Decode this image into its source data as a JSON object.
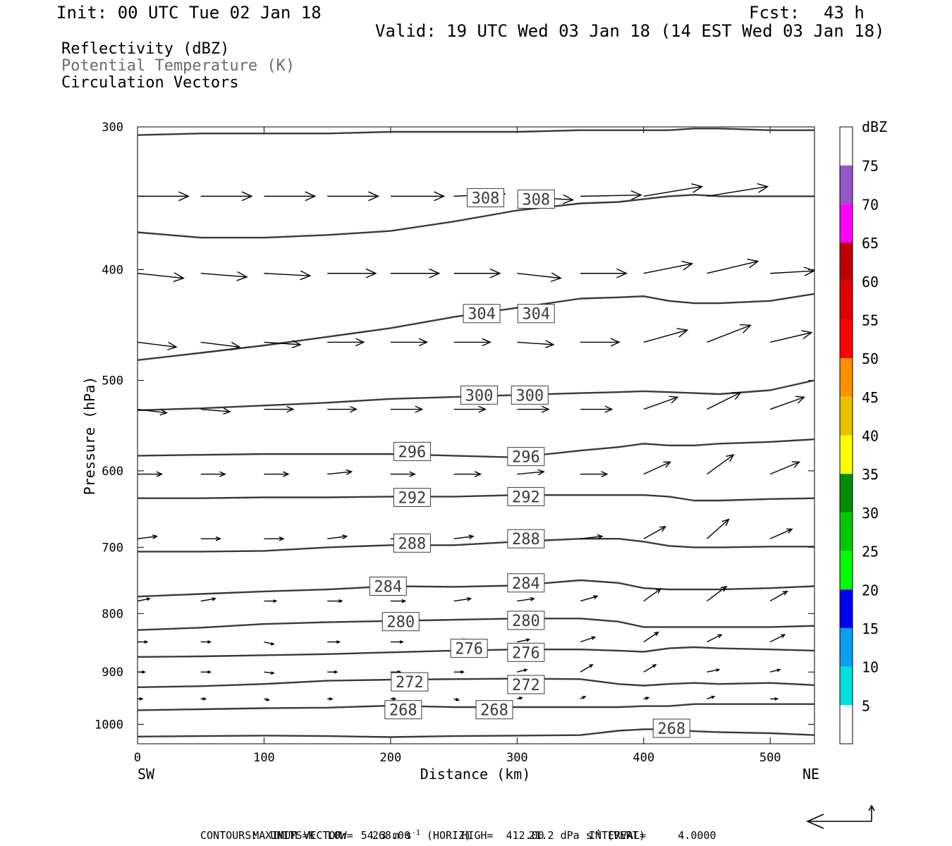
{
  "header": {
    "init": "Init: 00 UTC Tue 02 Jan 18",
    "fcst_label": "Fcst:",
    "fcst_value": "43 h",
    "valid": "Valid: 19 UTC Wed 03 Jan 18 (14 EST Wed 03 Jan 18)"
  },
  "fields": {
    "reflectivity": "Reflectivity (dBZ)",
    "potential_temperature": "Potential Temperature (K)",
    "circulation": "Circulation Vectors"
  },
  "axes": {
    "ylabel": "Pressure (hPa)",
    "xlabel": "Distance (km)",
    "left_end": "SW",
    "right_end": "NE"
  },
  "colorbar": {
    "unit": "dBZ",
    "levels": [
      "5",
      "10",
      "15",
      "20",
      "25",
      "30",
      "35",
      "40",
      "45",
      "50",
      "55",
      "60",
      "65",
      "70",
      "75"
    ],
    "colors": [
      "#ffffff",
      "#00e0e0",
      "#0aa0f0",
      "#0000f0",
      "#00ff00",
      "#00c800",
      "#008c00",
      "#ffff00",
      "#e8c000",
      "#ff9000",
      "#ff0000",
      "#e00000",
      "#c00000",
      "#ff00ff",
      "#9655c8",
      "#ffffff"
    ]
  },
  "footer": {
    "max_vector_label": "MAXIMUM VECTOR:",
    "horiz": "54.3 m s",
    "horiz_suffix": "(HORIZ)",
    "vert": "21.2 dPa s",
    "vert_suffix": "(VERT)",
    "exponent": "-1",
    "contours": "CONTOURS:  UNITS=K  LOW=   268.00        HIGH=  412.00       INTERVAL=     4.0000"
  },
  "chart_data": {
    "type": "line",
    "xlim": [
      0,
      535
    ],
    "ylim": [
      1040,
      300
    ],
    "y_scale": "log",
    "x_ticks": [
      "0",
      "100",
      "200",
      "300",
      "400",
      "500"
    ],
    "y_ticks": [
      "300",
      "400",
      "500",
      "600",
      "700",
      "800",
      "900",
      "1000"
    ],
    "contour_unit": "K",
    "x": [
      0,
      50,
      100,
      150,
      200,
      250,
      300,
      350,
      380,
      400,
      420,
      440,
      460,
      500,
      535
    ],
    "series": [
      {
        "values": [
          305,
          304,
          304,
          304,
          303,
          303,
          303,
          302,
          302,
          302,
          302,
          301,
          301,
          302,
          302
        ]
      },
      {
        "values": [
          371,
          375,
          375,
          373,
          370,
          363,
          355,
          350,
          349,
          347,
          345,
          344,
          345,
          345,
          345
        ]
      },
      {
        "values": [
          480,
          473,
          466,
          458,
          450,
          440,
          432,
          424,
          423,
          422,
          426,
          428,
          428,
          426,
          420
        ]
      },
      {
        "values": [
          531,
          529,
          526,
          523,
          519,
          517,
          515,
          513,
          512,
          511,
          512,
          513,
          514,
          510,
          500
        ]
      },
      {
        "values": [
          582,
          581,
          580,
          580,
          580,
          582,
          584,
          576,
          572,
          568,
          570,
          570,
          568,
          566,
          563
        ]
      },
      {
        "values": [
          634,
          634,
          633,
          633,
          632,
          632,
          630,
          630,
          630,
          630,
          632,
          637,
          637,
          635,
          634
        ]
      },
      {
        "values": [
          706,
          706,
          705,
          700,
          697,
          697,
          692,
          688,
          688,
          692,
          698,
          700,
          700,
          699,
          699
        ]
      },
      {
        "values": [
          773,
          769,
          765,
          762,
          757,
          758,
          756,
          748,
          752,
          760,
          762,
          762,
          762,
          760,
          757
        ]
      },
      {
        "values": [
          827,
          823,
          817,
          814,
          812,
          810,
          808,
          808,
          813,
          822,
          822,
          822,
          822,
          822,
          820
        ]
      },
      {
        "values": [
          873,
          872,
          870,
          868,
          865,
          862,
          860,
          860,
          862,
          864,
          858,
          856,
          858,
          860,
          862
        ]
      },
      {
        "values": [
          928,
          926,
          922,
          916,
          914,
          913,
          912,
          913,
          922,
          925,
          922,
          920,
          922,
          920,
          924
        ]
      },
      {
        "values": [
          972,
          970,
          968,
          967,
          963,
          966,
          966,
          966,
          966,
          964,
          964,
          960,
          960,
          960,
          960
        ]
      },
      {
        "values": [
          1025,
          1024,
          1023,
          1024,
          1026,
          1024,
          1023,
          1022,
          1013,
          1010,
          1010,
          1014,
          1016,
          1018,
          1022
        ]
      }
    ],
    "contour_labels": [
      {
        "text": "308",
        "x": 275,
        "y": 346
      },
      {
        "text": "308",
        "x": 315,
        "y": 347
      },
      {
        "text": "304",
        "x": 272,
        "y": 437
      },
      {
        "text": "304",
        "x": 315,
        "y": 437
      },
      {
        "text": "300",
        "x": 270,
        "y": 515
      },
      {
        "text": "300",
        "x": 310,
        "y": 515
      },
      {
        "text": "296",
        "x": 217,
        "y": 577
      },
      {
        "text": "296",
        "x": 307,
        "y": 583
      },
      {
        "text": "292",
        "x": 217,
        "y": 633
      },
      {
        "text": "292",
        "x": 307,
        "y": 632
      },
      {
        "text": "288",
        "x": 217,
        "y": 694
      },
      {
        "text": "288",
        "x": 307,
        "y": 688
      },
      {
        "text": "284",
        "x": 198,
        "y": 757
      },
      {
        "text": "284",
        "x": 307,
        "y": 752
      },
      {
        "text": "280",
        "x": 208,
        "y": 813
      },
      {
        "text": "280",
        "x": 307,
        "y": 811
      },
      {
        "text": "276",
        "x": 262,
        "y": 858
      },
      {
        "text": "276",
        "x": 307,
        "y": 865
      },
      {
        "text": "272",
        "x": 215,
        "y": 918
      },
      {
        "text": "272",
        "x": 307,
        "y": 923
      },
      {
        "text": "268",
        "x": 210,
        "y": 971
      },
      {
        "text": "268",
        "x": 282,
        "y": 971
      },
      {
        "text": "268",
        "x": 422,
        "y": 1008
      }
    ],
    "vectors": [
      {
        "x": 0,
        "y": 345,
        "u": 42,
        "w": 0
      },
      {
        "x": 50,
        "y": 345,
        "u": 42,
        "w": 0
      },
      {
        "x": 100,
        "y": 345,
        "u": 42,
        "w": 0
      },
      {
        "x": 150,
        "y": 345,
        "u": 42,
        "w": 0
      },
      {
        "x": 200,
        "y": 345,
        "u": 44,
        "w": 0
      },
      {
        "x": 250,
        "y": 345,
        "u": 42,
        "w": 2
      },
      {
        "x": 300,
        "y": 345,
        "u": 46,
        "w": -3
      },
      {
        "x": 350,
        "y": 345,
        "u": 50,
        "w": 1
      },
      {
        "x": 400,
        "y": 345,
        "u": 48,
        "w": 8
      },
      {
        "x": 450,
        "y": 345,
        "u": 50,
        "w": 8
      },
      {
        "x": 0,
        "y": 403,
        "u": 38,
        "w": -4
      },
      {
        "x": 50,
        "y": 403,
        "u": 38,
        "w": -3
      },
      {
        "x": 100,
        "y": 403,
        "u": 38,
        "w": -2
      },
      {
        "x": 150,
        "y": 403,
        "u": 40,
        "w": 0
      },
      {
        "x": 200,
        "y": 403,
        "u": 40,
        "w": 0
      },
      {
        "x": 250,
        "y": 403,
        "u": 38,
        "w": 0
      },
      {
        "x": 300,
        "y": 403,
        "u": 36,
        "w": -4
      },
      {
        "x": 350,
        "y": 403,
        "u": 38,
        "w": 0
      },
      {
        "x": 400,
        "y": 403,
        "u": 40,
        "w": 8
      },
      {
        "x": 450,
        "y": 403,
        "u": 42,
        "w": 10
      },
      {
        "x": 500,
        "y": 403,
        "u": 36,
        "w": 2
      },
      {
        "x": 0,
        "y": 463,
        "u": 32,
        "w": -4
      },
      {
        "x": 50,
        "y": 463,
        "u": 32,
        "w": -4
      },
      {
        "x": 100,
        "y": 463,
        "u": 30,
        "w": -2
      },
      {
        "x": 150,
        "y": 463,
        "u": 30,
        "w": 0
      },
      {
        "x": 200,
        "y": 463,
        "u": 30,
        "w": 0
      },
      {
        "x": 250,
        "y": 463,
        "u": 30,
        "w": 0
      },
      {
        "x": 300,
        "y": 463,
        "u": 30,
        "w": -2
      },
      {
        "x": 350,
        "y": 463,
        "u": 32,
        "w": 0
      },
      {
        "x": 400,
        "y": 463,
        "u": 36,
        "w": 10
      },
      {
        "x": 450,
        "y": 463,
        "u": 36,
        "w": 14
      },
      {
        "x": 500,
        "y": 463,
        "u": 34,
        "w": 8
      },
      {
        "x": 0,
        "y": 530,
        "u": 24,
        "w": -3
      },
      {
        "x": 50,
        "y": 530,
        "u": 24,
        "w": -2
      },
      {
        "x": 100,
        "y": 530,
        "u": 24,
        "w": 0
      },
      {
        "x": 150,
        "y": 530,
        "u": 24,
        "w": 0
      },
      {
        "x": 200,
        "y": 530,
        "u": 26,
        "w": 0
      },
      {
        "x": 250,
        "y": 530,
        "u": 26,
        "w": 0
      },
      {
        "x": 300,
        "y": 530,
        "u": 26,
        "w": 0
      },
      {
        "x": 350,
        "y": 530,
        "u": 26,
        "w": 0
      },
      {
        "x": 400,
        "y": 530,
        "u": 28,
        "w": 10
      },
      {
        "x": 450,
        "y": 530,
        "u": 28,
        "w": 14
      },
      {
        "x": 500,
        "y": 530,
        "u": 28,
        "w": 10
      },
      {
        "x": 0,
        "y": 604,
        "u": 20,
        "w": 0
      },
      {
        "x": 50,
        "y": 604,
        "u": 20,
        "w": 0
      },
      {
        "x": 100,
        "y": 604,
        "u": 20,
        "w": 0
      },
      {
        "x": 150,
        "y": 604,
        "u": 20,
        "w": 2
      },
      {
        "x": 200,
        "y": 604,
        "u": 20,
        "w": 0
      },
      {
        "x": 250,
        "y": 604,
        "u": 22,
        "w": 0
      },
      {
        "x": 300,
        "y": 604,
        "u": 22,
        "w": 2
      },
      {
        "x": 350,
        "y": 604,
        "u": 22,
        "w": 0
      },
      {
        "x": 400,
        "y": 604,
        "u": 22,
        "w": 10
      },
      {
        "x": 450,
        "y": 604,
        "u": 22,
        "w": 16
      },
      {
        "x": 500,
        "y": 604,
        "u": 24,
        "w": 10
      },
      {
        "x": 0,
        "y": 688,
        "u": 16,
        "w": 2
      },
      {
        "x": 50,
        "y": 688,
        "u": 16,
        "w": 0
      },
      {
        "x": 100,
        "y": 688,
        "u": 16,
        "w": 0
      },
      {
        "x": 150,
        "y": 688,
        "u": 16,
        "w": 2
      },
      {
        "x": 200,
        "y": 688,
        "u": 16,
        "w": 0
      },
      {
        "x": 250,
        "y": 688,
        "u": 16,
        "w": 2
      },
      {
        "x": 300,
        "y": 688,
        "u": 18,
        "w": 2
      },
      {
        "x": 350,
        "y": 688,
        "u": 18,
        "w": 2
      },
      {
        "x": 400,
        "y": 688,
        "u": 18,
        "w": 10
      },
      {
        "x": 450,
        "y": 688,
        "u": 18,
        "w": 16
      },
      {
        "x": 500,
        "y": 688,
        "u": 18,
        "w": 8
      },
      {
        "x": 0,
        "y": 780,
        "u": 10,
        "w": 2
      },
      {
        "x": 50,
        "y": 780,
        "u": 12,
        "w": 2
      },
      {
        "x": 100,
        "y": 780,
        "u": 10,
        "w": 0
      },
      {
        "x": 150,
        "y": 780,
        "u": 12,
        "w": 0
      },
      {
        "x": 200,
        "y": 780,
        "u": 12,
        "w": 0
      },
      {
        "x": 250,
        "y": 780,
        "u": 14,
        "w": 2
      },
      {
        "x": 300,
        "y": 780,
        "u": 14,
        "w": 2
      },
      {
        "x": 350,
        "y": 780,
        "u": 14,
        "w": 4
      },
      {
        "x": 400,
        "y": 780,
        "u": 14,
        "w": 10
      },
      {
        "x": 450,
        "y": 780,
        "u": 16,
        "w": 12
      },
      {
        "x": 500,
        "y": 780,
        "u": 14,
        "w": 8
      },
      {
        "x": 0,
        "y": 847,
        "u": 8,
        "w": 0
      },
      {
        "x": 50,
        "y": 847,
        "u": 8,
        "w": 0
      },
      {
        "x": 100,
        "y": 847,
        "u": 8,
        "w": -2
      },
      {
        "x": 150,
        "y": 847,
        "u": 10,
        "w": 0
      },
      {
        "x": 200,
        "y": 847,
        "u": 10,
        "w": 0
      },
      {
        "x": 250,
        "y": 847,
        "u": 10,
        "w": 2
      },
      {
        "x": 300,
        "y": 847,
        "u": 10,
        "w": 2
      },
      {
        "x": 350,
        "y": 847,
        "u": 12,
        "w": 4
      },
      {
        "x": 400,
        "y": 847,
        "u": 12,
        "w": 8
      },
      {
        "x": 450,
        "y": 847,
        "u": 12,
        "w": 6
      },
      {
        "x": 500,
        "y": 847,
        "u": 12,
        "w": 6
      },
      {
        "x": 0,
        "y": 900,
        "u": 6,
        "w": 0
      },
      {
        "x": 50,
        "y": 900,
        "u": 8,
        "w": 0
      },
      {
        "x": 100,
        "y": 900,
        "u": 8,
        "w": -1
      },
      {
        "x": 150,
        "y": 900,
        "u": 8,
        "w": 0
      },
      {
        "x": 200,
        "y": 900,
        "u": 8,
        "w": 0
      },
      {
        "x": 250,
        "y": 900,
        "u": 8,
        "w": 0
      },
      {
        "x": 300,
        "y": 900,
        "u": 8,
        "w": 2
      },
      {
        "x": 350,
        "y": 900,
        "u": 10,
        "w": 6
      },
      {
        "x": 400,
        "y": 900,
        "u": 10,
        "w": 6
      },
      {
        "x": 450,
        "y": 900,
        "u": 10,
        "w": 2
      },
      {
        "x": 500,
        "y": 900,
        "u": 8,
        "w": 2
      },
      {
        "x": 0,
        "y": 950,
        "u": 4,
        "w": 0
      },
      {
        "x": 50,
        "y": 950,
        "u": 4,
        "w": 0
      },
      {
        "x": 100,
        "y": 950,
        "u": 4,
        "w": -1
      },
      {
        "x": 150,
        "y": 950,
        "u": 4,
        "w": 0
      },
      {
        "x": 200,
        "y": 950,
        "u": 4,
        "w": 0
      },
      {
        "x": 250,
        "y": 950,
        "u": 4,
        "w": -1
      },
      {
        "x": 300,
        "y": 950,
        "u": 4,
        "w": 1
      },
      {
        "x": 350,
        "y": 950,
        "u": 4,
        "w": 2
      },
      {
        "x": 400,
        "y": 950,
        "u": 4,
        "w": 1
      },
      {
        "x": 450,
        "y": 950,
        "u": 6,
        "w": 2
      },
      {
        "x": 500,
        "y": 950,
        "u": 6,
        "w": 0
      }
    ]
  }
}
